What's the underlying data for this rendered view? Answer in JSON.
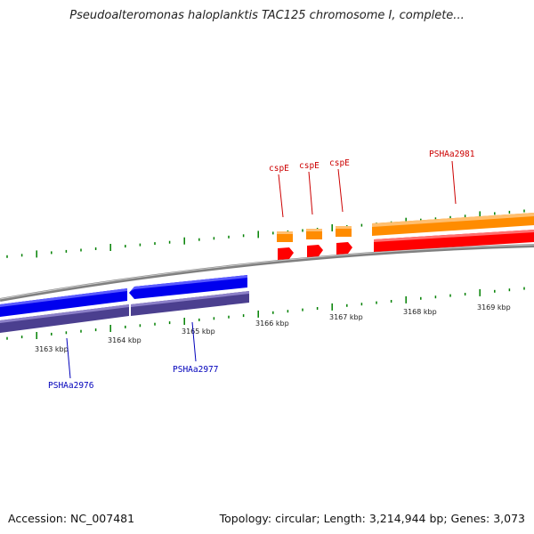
{
  "title": "Pseudoalteromonas haloplanktis TAC125 chromosome I, complete...",
  "footer": {
    "accession": "Accession: NC_007481",
    "summary": "Topology: circular; Length: 3,214,944 bp; Genes: 3,073"
  },
  "colors": {
    "forward_gene": "#ff0000",
    "forward_cds": "#ff8c00",
    "reverse_gene": "#0000ee",
    "reverse_cds": "#4b3f8f",
    "backbone": "#808080",
    "tick": "#008000",
    "forward_label": "#cc0000",
    "reverse_label": "#0000bb"
  },
  "scale_labels": [
    "3163 kbp",
    "3164 kbp",
    "3165 kbp",
    "3166 kbp",
    "3167 kbp",
    "3168 kbp",
    "3169 kbp"
  ],
  "features": [
    {
      "name": "PSHAa2976",
      "strand": "reverse"
    },
    {
      "name": "PSHAa2977",
      "strand": "reverse"
    },
    {
      "name": "cspE",
      "strand": "forward"
    },
    {
      "name": "cspE",
      "strand": "forward"
    },
    {
      "name": "cspE",
      "strand": "forward"
    },
    {
      "name": "PSHAa2981",
      "strand": "forward"
    }
  ]
}
